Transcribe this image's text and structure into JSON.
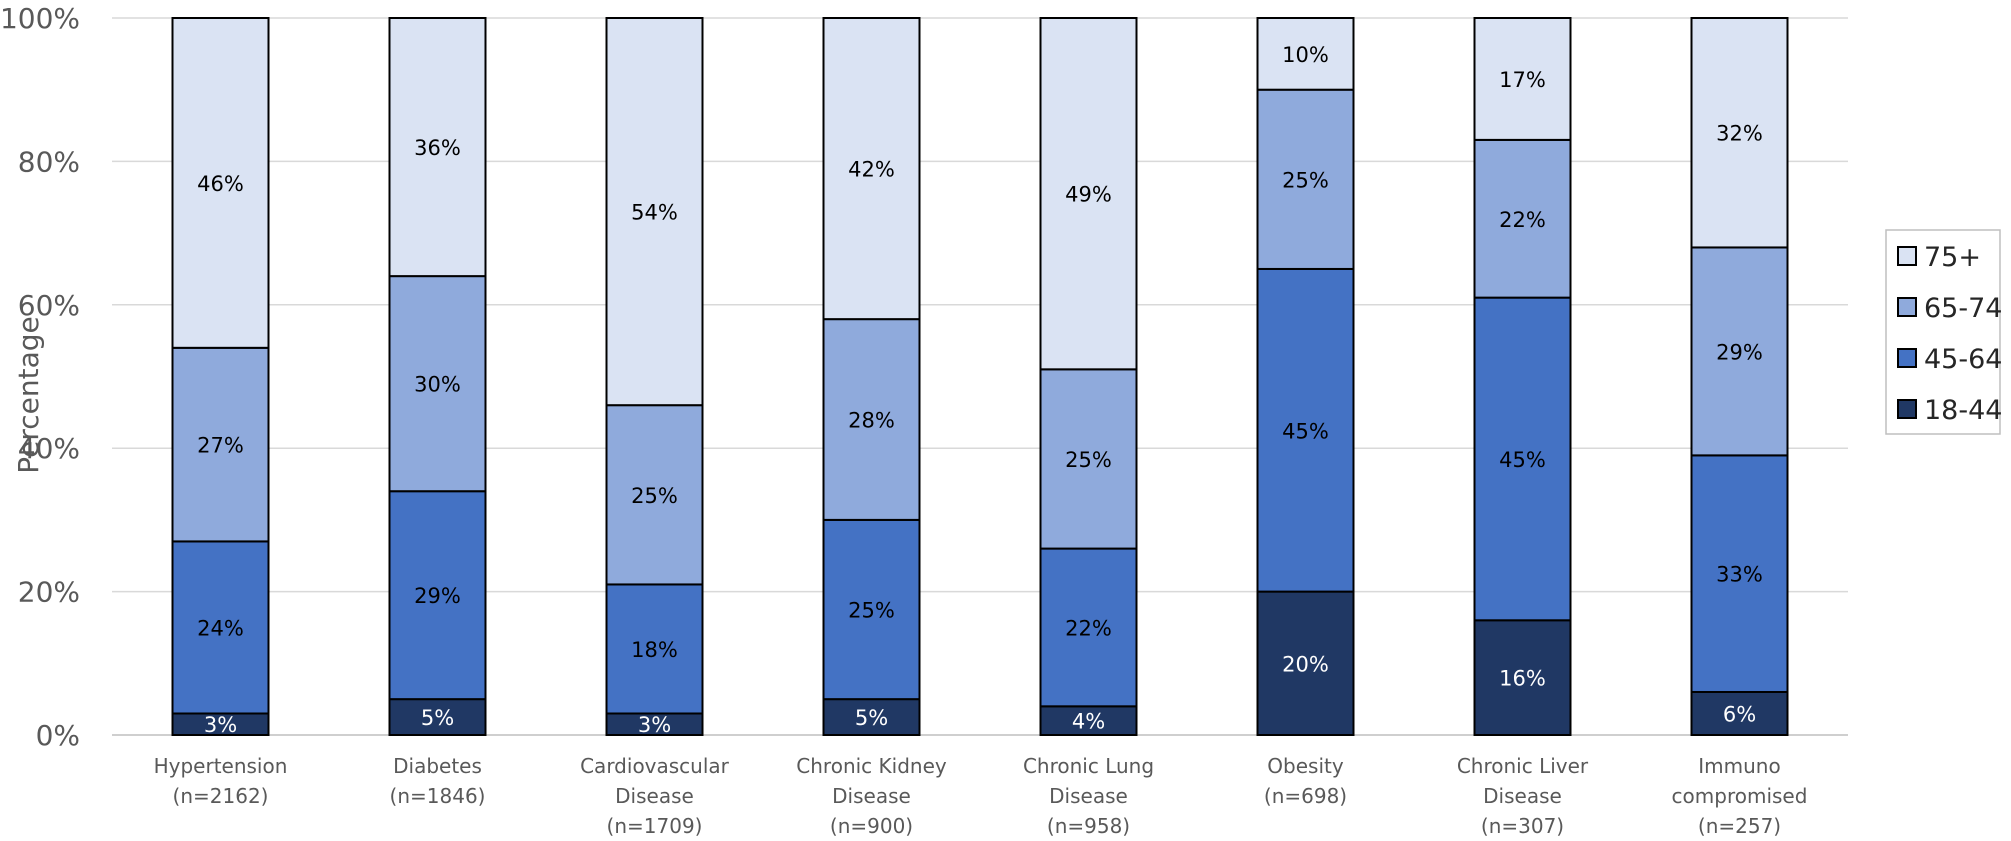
{
  "chart_data": {
    "type": "bar",
    "stacked": true,
    "percent_stacked": true,
    "ylabel": "Percentage",
    "xlabel": "",
    "ylim": [
      0,
      100
    ],
    "yticks": [
      "0%",
      "20%",
      "40%",
      "60%",
      "80%",
      "100%"
    ],
    "grid": true,
    "legend_position": "right",
    "categories": [
      [
        "Hypertension",
        "(n=2162)"
      ],
      [
        "Diabetes",
        "(n=1846)"
      ],
      [
        "Cardiovascular",
        "Disease",
        "(n=1709)"
      ],
      [
        "Chronic Kidney",
        "Disease",
        "(n=900)"
      ],
      [
        "Chronic Lung",
        "Disease",
        "(n=958)"
      ],
      [
        "Obesity",
        "(n=698)"
      ],
      [
        "Chronic Liver",
        "Disease",
        "(n=307)"
      ],
      [
        "Immuno",
        "compromised",
        "(n=257)"
      ]
    ],
    "series": [
      {
        "name": "18-44",
        "color": "#203864",
        "label_color": "#ffffff",
        "values": [
          3,
          5,
          3,
          5,
          4,
          20,
          16,
          6
        ]
      },
      {
        "name": "45-64",
        "color": "#4472C4",
        "label_color": "#000000",
        "values": [
          24,
          29,
          18,
          25,
          22,
          45,
          45,
          33
        ]
      },
      {
        "name": "65-74",
        "color": "#8FAADC",
        "label_color": "#000000",
        "values": [
          27,
          30,
          25,
          28,
          25,
          25,
          22,
          29
        ]
      },
      {
        "name": "75+",
        "color": "#DAE3F3",
        "label_color": "#000000",
        "values": [
          46,
          36,
          54,
          42,
          49,
          10,
          17,
          32
        ]
      }
    ]
  }
}
